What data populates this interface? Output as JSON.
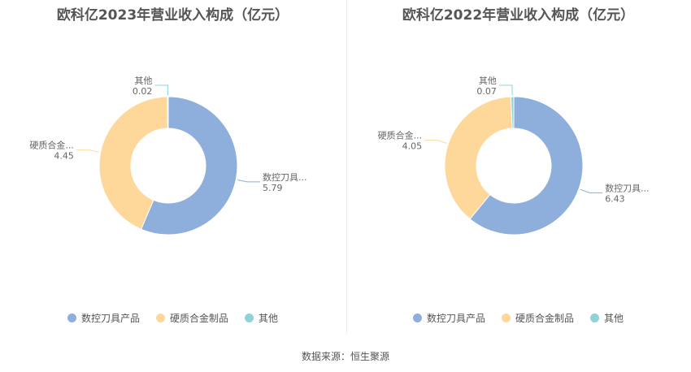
{
  "chart_data": [
    {
      "type": "pie",
      "title": "欧科亿2023年营业收入构成（亿元）",
      "slices": [
        {
          "name": "数控刀具产品",
          "label": "数控刀具...",
          "value": 5.79,
          "value_label": "5.79",
          "color": "#8eaedc"
        },
        {
          "name": "硬质合金制品",
          "label": "硬质合金...",
          "value": 4.45,
          "value_label": "4.45",
          "color": "#fdd89a"
        },
        {
          "name": "其他",
          "label": "其他",
          "value": 0.02,
          "value_label": "0.02",
          "color": "#8fd3d8"
        }
      ],
      "legend": {
        "position": "bottom",
        "items": [
          "数控刀具产品",
          "硬质合金制品",
          "其他"
        ]
      }
    },
    {
      "type": "pie",
      "title": "欧科亿2022年营业收入构成（亿元）",
      "slices": [
        {
          "name": "数控刀具产品",
          "label": "数控刀具...",
          "value": 6.43,
          "value_label": "6.43",
          "color": "#8eaedc"
        },
        {
          "name": "硬质合金制品",
          "label": "硬质合金...",
          "value": 4.05,
          "value_label": "4.05",
          "color": "#fdd89a"
        },
        {
          "name": "其他",
          "label": "其他",
          "value": 0.07,
          "value_label": "0.07",
          "color": "#8fd3d8"
        }
      ],
      "legend": {
        "position": "bottom",
        "items": [
          "数控刀具产品",
          "硬质合金制品",
          "其他"
        ]
      }
    }
  ],
  "source": "数据来源：恒生聚源"
}
